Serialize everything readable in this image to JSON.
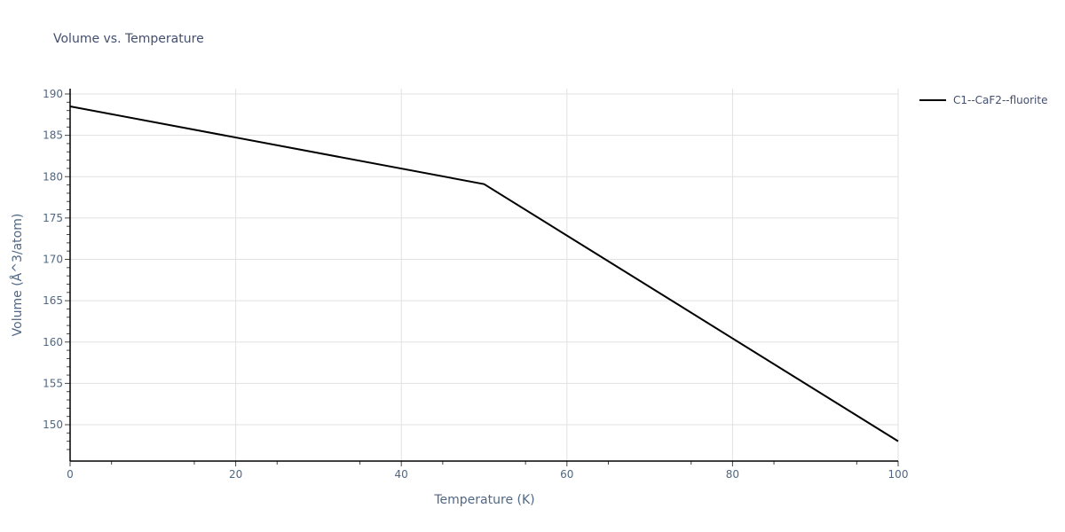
{
  "chart_data": {
    "type": "line",
    "title": "Volume vs. Temperature",
    "xlabel": "Temperature (K)",
    "ylabel": "Volume (Å^3/atom)",
    "xlim": [
      0,
      100
    ],
    "ylim": [
      146,
      190.5
    ],
    "x_ticks": [
      0,
      20,
      40,
      60,
      80,
      100
    ],
    "y_ticks": [
      150,
      155,
      160,
      165,
      170,
      175,
      180,
      185,
      190
    ],
    "grid": true,
    "legend_position": "top-right outside",
    "series": [
      {
        "name": "C1--CaF2--fluorite",
        "color": "#000000",
        "x": [
          0,
          50,
          100
        ],
        "y": [
          188.5,
          179.1,
          148.0
        ]
      }
    ]
  },
  "colors": {
    "line": "#000000",
    "grid": "#e1e1e1",
    "text": "#506784"
  }
}
